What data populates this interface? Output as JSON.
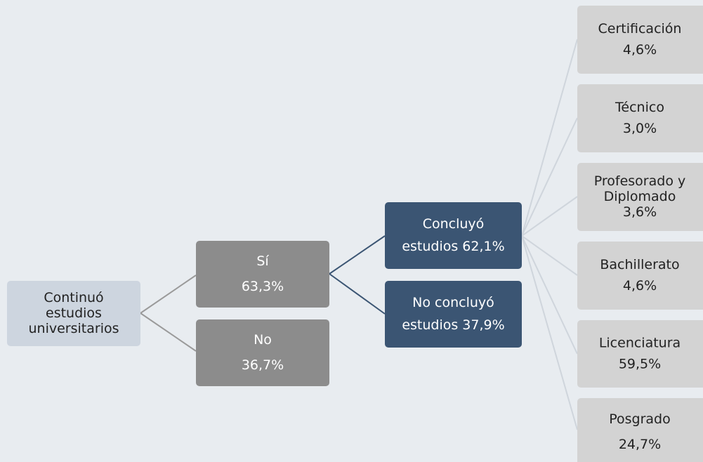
{
  "nodes": [
    {
      "lines": [
        "Continuó",
        "estudios",
        "universitarios"
      ]
    },
    {
      "lines": [
        "Sí",
        "63,3%"
      ]
    },
    {
      "lines": [
        "No",
        "36,7%"
      ]
    },
    {
      "lines": [
        "Concluyó",
        "estudios 62,1%"
      ]
    },
    {
      "lines": [
        "No concluyó",
        "estudios 37,9%"
      ]
    },
    {
      "lines": [
        "Certificación",
        "4,6%"
      ]
    },
    {
      "lines": [
        "Técnico",
        "3,0%"
      ]
    },
    {
      "lines": [
        "Profesorado y",
        "Diplomado",
        "3,6%"
      ]
    },
    {
      "lines": [
        "Bachillerato",
        "4,6%"
      ]
    },
    {
      "lines": [
        "Licenciatura",
        "59,5%"
      ]
    },
    {
      "lines": [
        "Posgrado",
        "24,7%"
      ]
    }
  ]
}
